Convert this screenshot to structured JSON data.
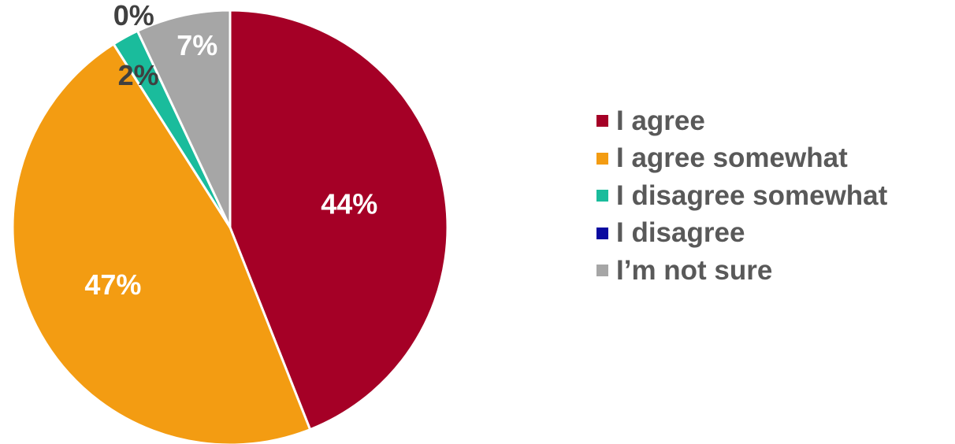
{
  "chart_data": {
    "type": "pie",
    "categories": [
      "I agree",
      "I agree somewhat",
      "I disagree somewhat",
      "I disagree",
      "I’m not sure"
    ],
    "values": [
      44,
      47,
      2,
      0,
      7
    ],
    "labels": [
      "44%",
      "47%",
      "2%",
      "0%",
      "7%"
    ],
    "colors": [
      "#A50026",
      "#F39C12",
      "#1ABC9C",
      "#0A0AA0",
      "#A6A6A6"
    ],
    "label_colors": [
      "#ffffff",
      "#ffffff",
      "#404040",
      "#404040",
      "#ffffff"
    ],
    "start_angle": "12 o'clock",
    "direction": "clockwise",
    "legend_position": "right"
  }
}
